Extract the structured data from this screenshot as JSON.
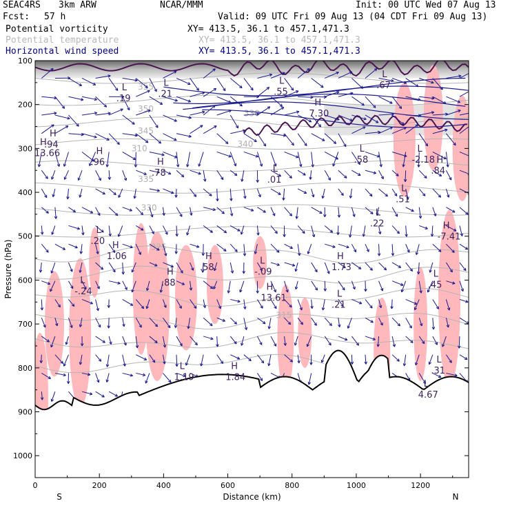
{
  "header": {
    "project": "SEAC4RS",
    "model": "3km ARW",
    "org": "NCAR/MMM",
    "init": "Init: 00 UTC Wed 07 Aug 13",
    "fcst_label": "Fcst:",
    "fcst_value": "57 h",
    "valid": "Valid: 09 UTC Fri 09 Aug 13 (04 CDT Fri 09 Aug 13)",
    "fields": [
      {
        "name": "Potential vorticity",
        "xy": "XY= 413.5, 36.1 to 457.1,471.3",
        "color": "#000000"
      },
      {
        "name": "Potential temperature",
        "xy": "XY= 413.5, 36.1 to 457.1,471.3",
        "color": "#b8b8b8"
      },
      {
        "name": "Horizontal wind speed",
        "xy": "XY= 413.5, 36.1 to 457.1,471.3",
        "color": "#000080"
      }
    ]
  },
  "chart_data": {
    "type": "cross-section",
    "xlabel": "Distance (km)",
    "ylabel": "Pressure (hPa)",
    "xlim": [
      0,
      1350
    ],
    "ylim": [
      1050,
      100
    ],
    "x_ticks": [
      "0",
      "200",
      "400",
      "600",
      "800",
      "1000",
      "1200"
    ],
    "y_ticks": [
      "100",
      "200",
      "300",
      "400",
      "500",
      "600",
      "700",
      "800",
      "900",
      "1000"
    ],
    "end_labels": {
      "left": "S",
      "right": "N"
    },
    "colors": {
      "theta": "#b4b4b4",
      "pv": "#4a1450",
      "wind": "#1a1a8c",
      "shade": "#ffb8bc",
      "terrain": "#000000"
    },
    "theta_isentropes": [
      {
        "label": "355",
        "x": 320,
        "p": 160
      },
      {
        "label": "350",
        "x": 320,
        "p": 210
      },
      {
        "label": "345",
        "x": 320,
        "p": 260
      },
      {
        "label": "340",
        "x": 630,
        "p": 290
      },
      {
        "label": "330",
        "x": 650,
        "p": 220
      },
      {
        "label": "310",
        "x": 300,
        "p": 300
      },
      {
        "label": "335",
        "x": 320,
        "p": 370
      },
      {
        "label": "330",
        "x": 330,
        "p": 435
      },
      {
        "label": "325",
        "x": 360,
        "p": 525
      },
      {
        "label": "315",
        "x": 750,
        "p": 680
      }
    ],
    "highs_lows": [
      {
        "type": "H",
        "value": "13.66",
        "x": 15,
        "p": 305
      },
      {
        "type": "H",
        "value": ".94",
        "x": 45,
        "p": 285
      },
      {
        "type": "H",
        "value": ".96",
        "x": 190,
        "p": 325
      },
      {
        "type": "L",
        "value": ".19",
        "x": 270,
        "p": 180
      },
      {
        "type": "L",
        "value": ".21",
        "x": 400,
        "p": 170
      },
      {
        "type": "H",
        "value": ".78",
        "x": 380,
        "p": 350
      },
      {
        "type": "L",
        "value": ".55",
        "x": 760,
        "p": 165
      },
      {
        "type": "H",
        "value": "7.30",
        "x": 870,
        "p": 215
      },
      {
        "type": "L",
        "value": ".01",
        "x": 740,
        "p": 365
      },
      {
        "type": "L",
        "value": ".58",
        "x": 1010,
        "p": 320
      },
      {
        "type": "L",
        "value": ".67",
        "x": 1080,
        "p": 150
      },
      {
        "type": "L",
        "value": "-2.18",
        "x": 1190,
        "p": 320
      },
      {
        "type": "H",
        "value": ".84",
        "x": 1250,
        "p": 345
      },
      {
        "type": "L",
        "value": ".22",
        "x": 1060,
        "p": 465
      },
      {
        "type": "L",
        "value": ".51",
        "x": 1140,
        "p": 410
      },
      {
        "type": "H",
        "value": "-7.41",
        "x": 1270,
        "p": 495
      },
      {
        "type": "L",
        "value": ".20",
        "x": 190,
        "p": 505
      },
      {
        "type": "H",
        "value": "1.06",
        "x": 240,
        "p": 540
      },
      {
        "type": "H",
        "value": ".58",
        "x": 530,
        "p": 565
      },
      {
        "type": "L",
        "value": "-.09",
        "x": 700,
        "p": 575
      },
      {
        "type": "H",
        "value": "1.73",
        "x": 940,
        "p": 565
      },
      {
        "type": "L",
        "value": "-.24",
        "x": 140,
        "p": 620
      },
      {
        "type": "H",
        "value": ".88",
        "x": 410,
        "p": 600
      },
      {
        "type": "H",
        "value": "13.61",
        "x": 720,
        "p": 635
      },
      {
        "type": "L",
        "value": ".21",
        "x": 940,
        "p": 650
      },
      {
        "type": "L",
        "value": ".45",
        "x": 1240,
        "p": 605
      },
      {
        "type": "L",
        "value": "1.19",
        "x": 450,
        "p": 815
      },
      {
        "type": "H",
        "value": "1.84",
        "x": 610,
        "p": 815
      },
      {
        "type": "L",
        "value": ".31",
        "x": 1250,
        "p": 800
      },
      {
        "type": "L",
        "value": "4.67",
        "x": 1210,
        "p": 855
      }
    ]
  }
}
